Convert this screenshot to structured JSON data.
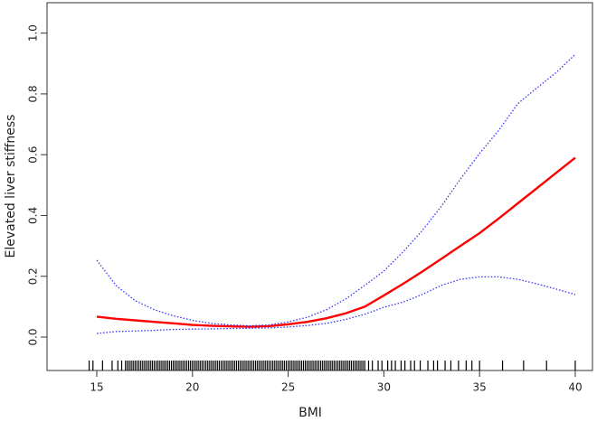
{
  "chart_data": {
    "type": "line",
    "x_label": "BMI",
    "y_label": "Elevated liver stiffness",
    "x": [
      15,
      16,
      17,
      18,
      19,
      20,
      21,
      22,
      23,
      24,
      25,
      26,
      27,
      28,
      29,
      30,
      31,
      32,
      33,
      34,
      35,
      36,
      37,
      38,
      39,
      40
    ],
    "series": [
      {
        "color": "#ff0000",
        "style": "solid",
        "values": [
          0.067,
          0.06,
          0.055,
          0.05,
          0.045,
          0.04,
          0.037,
          0.035,
          0.034,
          0.036,
          0.042,
          0.05,
          0.062,
          0.078,
          0.1,
          0.137,
          0.175,
          0.215,
          0.257,
          0.3,
          0.342,
          0.39,
          0.44,
          0.49,
          0.54,
          0.59
        ]
      },
      {
        "color": "#3333ff",
        "style": "dotted",
        "values": [
          0.253,
          0.17,
          0.12,
          0.09,
          0.07,
          0.055,
          0.045,
          0.04,
          0.037,
          0.04,
          0.05,
          0.065,
          0.09,
          0.125,
          0.17,
          0.217,
          0.28,
          0.35,
          0.43,
          0.52,
          0.604,
          0.68,
          0.768,
          0.82,
          0.87,
          0.93
        ]
      },
      {
        "color": "#3333ff",
        "style": "dotted",
        "values": [
          0.012,
          0.018,
          0.02,
          0.022,
          0.025,
          0.026,
          0.027,
          0.028,
          0.029,
          0.03,
          0.033,
          0.038,
          0.045,
          0.058,
          0.075,
          0.098,
          0.115,
          0.14,
          0.17,
          0.19,
          0.198,
          0.198,
          0.19,
          0.175,
          0.158,
          0.14
        ]
      }
    ],
    "rug": [
      14.6,
      14.8,
      15.3,
      15.8,
      16.1,
      16.3,
      16.5,
      16.6,
      16.7,
      16.8,
      16.9,
      17.0,
      17.1,
      17.2,
      17.3,
      17.4,
      17.5,
      17.6,
      17.7,
      17.8,
      17.9,
      18.0,
      18.1,
      18.2,
      18.3,
      18.4,
      18.5,
      18.6,
      18.7,
      18.8,
      18.9,
      19.0,
      19.1,
      19.2,
      19.3,
      19.4,
      19.5,
      19.6,
      19.7,
      19.8,
      19.9,
      20.0,
      20.1,
      20.2,
      20.3,
      20.4,
      20.5,
      20.6,
      20.7,
      20.8,
      20.9,
      21.0,
      21.1,
      21.2,
      21.3,
      21.4,
      21.5,
      21.6,
      21.7,
      21.8,
      21.9,
      22.0,
      22.1,
      22.2,
      22.3,
      22.4,
      22.5,
      22.6,
      22.7,
      22.8,
      22.9,
      23.0,
      23.1,
      23.2,
      23.3,
      23.4,
      23.5,
      23.6,
      23.7,
      23.8,
      23.9,
      24.0,
      24.1,
      24.2,
      24.3,
      24.4,
      24.5,
      24.6,
      24.7,
      24.8,
      24.9,
      25.0,
      25.1,
      25.2,
      25.3,
      25.4,
      25.5,
      25.6,
      25.7,
      25.8,
      25.9,
      26.0,
      26.1,
      26.2,
      26.3,
      26.4,
      26.5,
      26.6,
      26.7,
      26.8,
      26.9,
      27.0,
      27.1,
      27.2,
      27.3,
      27.4,
      27.5,
      27.6,
      27.7,
      27.8,
      27.9,
      28.0,
      28.1,
      28.2,
      28.3,
      28.4,
      28.5,
      28.6,
      28.7,
      28.8,
      28.9,
      29.0,
      29.2,
      29.4,
      29.7,
      29.9,
      30.2,
      30.4,
      30.6,
      30.9,
      31.1,
      31.4,
      31.6,
      31.9,
      32.3,
      32.6,
      32.8,
      33.2,
      33.5,
      33.9,
      34.3,
      34.6,
      35.0,
      36.2,
      37.3,
      38.5,
      40.0
    ],
    "xlim": [
      12.4,
      40.9
    ],
    "xticks": [
      15,
      20,
      25,
      30,
      35,
      40
    ],
    "ylim": [
      -0.11,
      1.1
    ],
    "yticks": [
      {
        "value": 0,
        "label": "0.0"
      },
      0.2,
      0.4,
      0.6,
      0.8,
      {
        "value": 1,
        "label": "1.0"
      }
    ]
  }
}
